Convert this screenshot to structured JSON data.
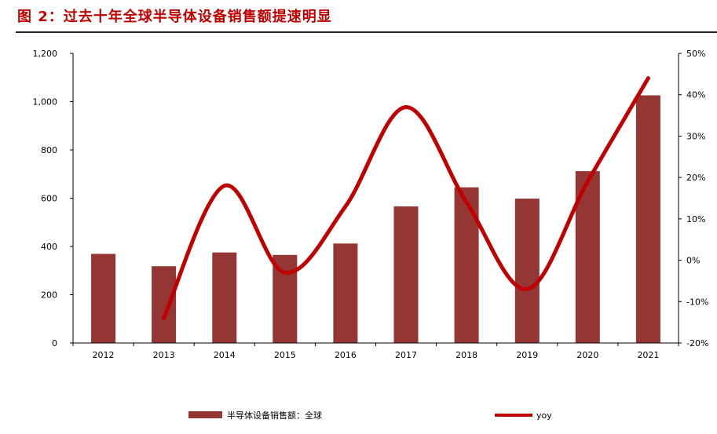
{
  "figure": {
    "title": "图 2：过去十年全球半导体设备销售额提速明显"
  },
  "colors": {
    "bar": "#943634",
    "line": "#c00000",
    "title": "#c00000",
    "axis": "#000000"
  },
  "chart_data": {
    "type": "bar",
    "title": "图 2：过去十年全球半导体设备销售额提速明显",
    "categories": [
      "2012",
      "2013",
      "2014",
      "2015",
      "2016",
      "2017",
      "2018",
      "2019",
      "2020",
      "2021"
    ],
    "series": [
      {
        "name": "半导体设备销售额：全球",
        "type": "bar",
        "axis": "left",
        "values": [
          369,
          318,
          375,
          365,
          412,
          566,
          645,
          598,
          712,
          1026
        ]
      },
      {
        "name": "yoy",
        "type": "line",
        "axis": "right",
        "values": [
          null,
          -14,
          18,
          -3,
          13,
          37,
          14,
          -7,
          19,
          44
        ]
      }
    ],
    "y_left": {
      "range": [
        0,
        1200
      ],
      "ticks": [
        0,
        200,
        400,
        600,
        800,
        1000,
        1200
      ],
      "tick_labels": [
        "0",
        "200",
        "400",
        "600",
        "800",
        "1,000",
        "1,200"
      ]
    },
    "y_right": {
      "range": [
        -20,
        50
      ],
      "ticks": [
        -20,
        -10,
        0,
        10,
        20,
        30,
        40,
        50
      ],
      "tick_labels": [
        "-20%",
        "-10%",
        "0%",
        "10%",
        "20%",
        "30%",
        "40%",
        "50%"
      ]
    },
    "xlabel": "",
    "ylabel": "",
    "grid": false,
    "legend": {
      "position": "bottom",
      "entries": [
        "半导体设备销售额：全球",
        "yoy"
      ]
    }
  }
}
